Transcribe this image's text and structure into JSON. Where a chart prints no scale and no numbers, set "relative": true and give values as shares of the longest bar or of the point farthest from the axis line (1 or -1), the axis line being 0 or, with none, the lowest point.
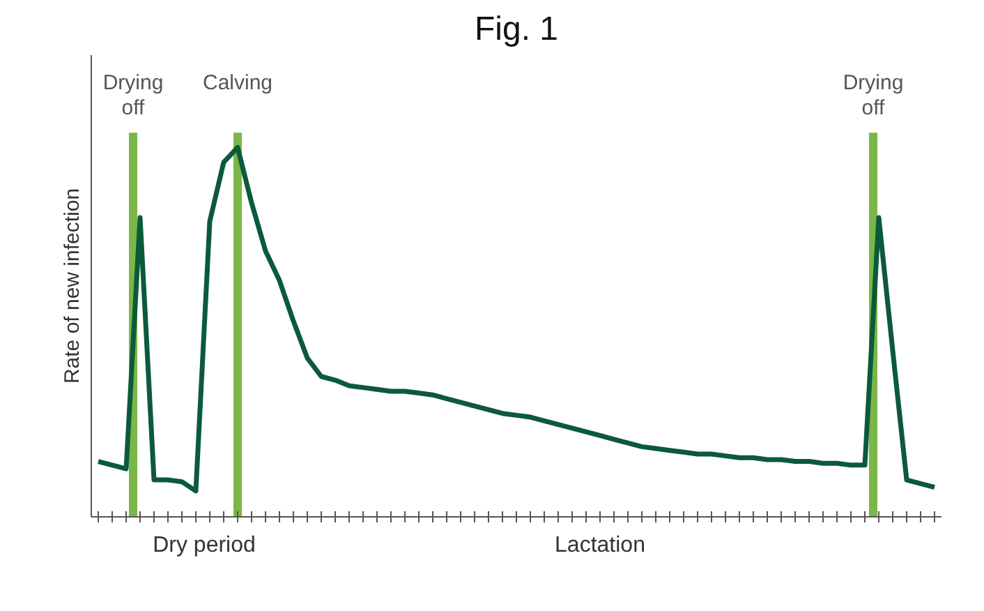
{
  "chart_data": {
    "type": "line",
    "title": "Fig. 1",
    "ylabel": "Rate of new infection",
    "relative": true,
    "marker": "none",
    "line_style": "solid",
    "categories": [
      null,
      null,
      null,
      null,
      null,
      null,
      null,
      null,
      null,
      null,
      null,
      null,
      null,
      null,
      null,
      null,
      null,
      null,
      null,
      null,
      null,
      null,
      null,
      null,
      null,
      null,
      null,
      null,
      null,
      null,
      null,
      null,
      null,
      null,
      null,
      null,
      null,
      null,
      null,
      null,
      null,
      null,
      null,
      null,
      null,
      null,
      null,
      null,
      null,
      null,
      null,
      null,
      null,
      null,
      null,
      null,
      null,
      null,
      null,
      null,
      null
    ],
    "annotations": [
      "Drying off",
      "Calving",
      "Drying off",
      "Dry period",
      "Lactation"
    ],
    "series": [
      {
        "color": "#0b5a3a",
        "values": [
          0.15,
          0.14,
          0.13,
          0.81,
          0.1,
          0.1,
          0.095,
          0.07,
          0.8,
          0.96,
          1.0,
          0.85,
          0.72,
          0.64,
          0.53,
          0.43,
          0.38,
          0.37,
          0.355,
          0.35,
          0.345,
          0.34,
          0.34,
          0.335,
          0.33,
          0.32,
          0.31,
          0.3,
          0.29,
          0.28,
          0.275,
          0.27,
          0.26,
          0.25,
          0.24,
          0.23,
          0.22,
          0.21,
          0.2,
          0.19,
          0.185,
          0.18,
          0.175,
          0.17,
          0.17,
          0.165,
          0.16,
          0.16,
          0.155,
          0.155,
          0.15,
          0.15,
          0.145,
          0.145,
          0.14,
          0.14,
          0.81,
          0.45,
          0.1,
          0.09,
          0.08
        ]
      }
    ]
  }
}
